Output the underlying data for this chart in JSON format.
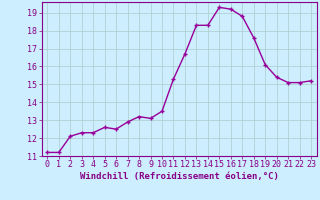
{
  "x": [
    0,
    1,
    2,
    3,
    4,
    5,
    6,
    7,
    8,
    9,
    10,
    11,
    12,
    13,
    14,
    15,
    16,
    17,
    18,
    19,
    20,
    21,
    22,
    23
  ],
  "y": [
    11.2,
    11.2,
    12.1,
    12.3,
    12.3,
    12.6,
    12.5,
    12.9,
    13.2,
    13.1,
    13.5,
    15.3,
    16.7,
    18.3,
    18.3,
    19.3,
    19.2,
    18.8,
    17.6,
    16.1,
    15.4,
    15.1,
    15.1,
    15.2
  ],
  "line_color": "#990099",
  "marker_color": "#990099",
  "bg_color": "#cceeff",
  "grid_color": "#aacccc",
  "xlabel": "Windchill (Refroidissement éolien,°C)",
  "ylabel": "",
  "xlim": [
    -0.5,
    23.5
  ],
  "ylim": [
    11,
    19.6
  ],
  "yticks": [
    11,
    12,
    13,
    14,
    15,
    16,
    17,
    18,
    19
  ],
  "xticks": [
    0,
    1,
    2,
    3,
    4,
    5,
    6,
    7,
    8,
    9,
    10,
    11,
    12,
    13,
    14,
    15,
    16,
    17,
    18,
    19,
    20,
    21,
    22,
    23
  ],
  "tick_fontsize": 6,
  "xlabel_fontsize": 6.5,
  "linewidth": 1.0,
  "markersize": 2.5
}
